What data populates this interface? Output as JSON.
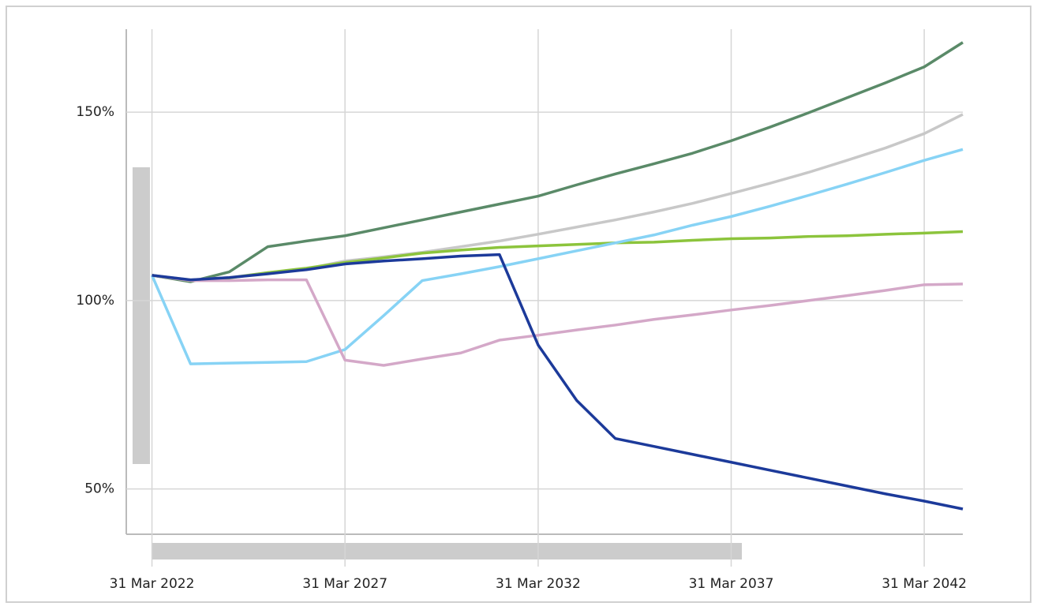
{
  "chart_data": {
    "type": "line",
    "x": [
      "2022-03-31",
      "2023-03-31",
      "2024-03-31",
      "2025-03-31",
      "2026-03-31",
      "2027-03-31",
      "2028-03-31",
      "2029-03-31",
      "2030-03-31",
      "2031-03-31",
      "2032-03-31",
      "2033-03-31",
      "2034-03-31",
      "2035-03-31",
      "2036-03-31",
      "2037-03-31",
      "2038-03-31",
      "2039-03-31",
      "2040-03-31",
      "2041-03-31",
      "2042-03-31",
      "2043-03-31"
    ],
    "series": [
      {
        "color": "#5a8a68",
        "values": [
          106.7,
          105.0,
          107.6,
          114.3,
          115.8,
          117.2,
          119.3,
          121.4,
          123.5,
          125.6,
          127.7,
          130.7,
          133.6,
          136.3,
          139.1,
          142.4,
          146.0,
          149.8,
          153.8,
          157.8,
          162.0,
          168.5
        ]
      },
      {
        "color": "#c8c8c8",
        "values": [
          106.7,
          105.5,
          106.1,
          107.4,
          108.4,
          110.5,
          111.6,
          112.8,
          114.3,
          115.8,
          117.6,
          119.5,
          121.4,
          123.5,
          125.8,
          128.4,
          131.1,
          134.0,
          137.2,
          140.5,
          144.3,
          149.4
        ]
      },
      {
        "color": "#8cc43c",
        "values": [
          106.7,
          105.3,
          106.0,
          107.4,
          108.6,
          110.1,
          111.3,
          112.6,
          113.4,
          114.1,
          114.5,
          114.9,
          115.3,
          115.5,
          116.0,
          116.4,
          116.6,
          117.0,
          117.2,
          117.6,
          117.9,
          118.3
        ]
      },
      {
        "color": "#87d3f5",
        "values": [
          106.7,
          83.2,
          83.4,
          83.6,
          83.8,
          87.0,
          96.0,
          105.3,
          107.1,
          109.0,
          111.1,
          113.2,
          115.3,
          117.4,
          120.0,
          122.3,
          125.0,
          127.9,
          130.9,
          134.0,
          137.2,
          140.1
        ]
      },
      {
        "color": "#d4a8c8",
        "values": [
          106.7,
          105.3,
          105.3,
          105.5,
          105.5,
          84.2,
          82.8,
          84.5,
          86.1,
          89.5,
          90.8,
          92.2,
          93.5,
          95.0,
          96.2,
          97.5,
          98.7,
          100.0,
          101.3,
          102.7,
          104.2,
          104.4
        ]
      },
      {
        "color": "#1c3a9a",
        "values": [
          106.7,
          105.5,
          106.1,
          107.1,
          108.2,
          109.7,
          110.5,
          111.1,
          111.8,
          112.2,
          88.2,
          73.5,
          63.4,
          61.3,
          59.2,
          57.1,
          55.0,
          52.9,
          50.8,
          48.7,
          46.8,
          44.7
        ]
      }
    ],
    "xlim": [
      "2021-07-31",
      "2043-03-31"
    ],
    "xticks": [
      {
        "value": "2022-03-31",
        "label": "31 Mar 2022"
      },
      {
        "value": "2027-03-31",
        "label": "31 Mar 2027"
      },
      {
        "value": "2032-03-31",
        "label": "31 Mar 2032"
      },
      {
        "value": "2037-03-31",
        "label": "31 Mar 2037"
      },
      {
        "value": "2042-03-31",
        "label": "31 Mar 2042"
      }
    ],
    "ylim": [
      38,
      172
    ],
    "yticks": [
      {
        "value": 50,
        "label": "50%"
      },
      {
        "value": 100,
        "label": "100%"
      },
      {
        "value": 150,
        "label": "150%"
      }
    ],
    "grid": true
  }
}
